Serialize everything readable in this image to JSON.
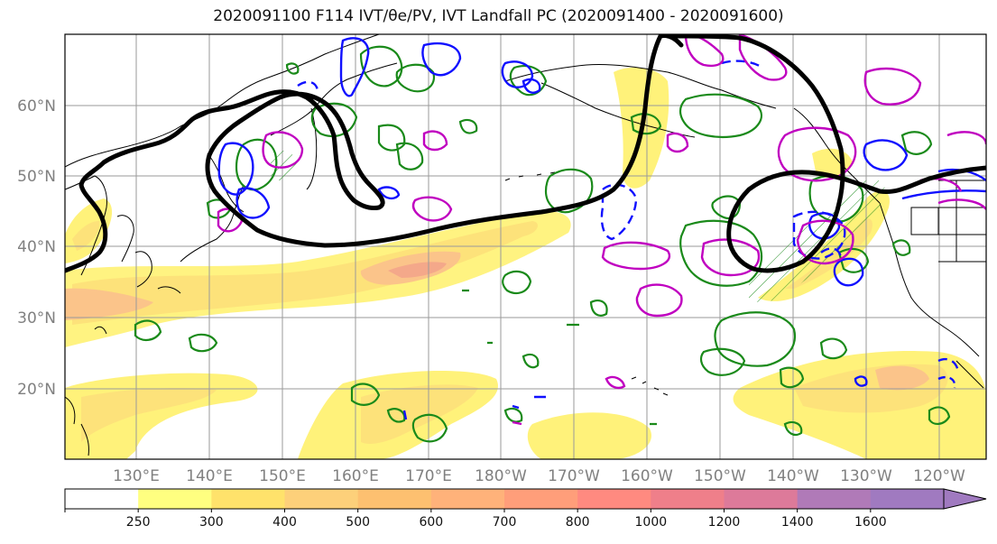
{
  "title": "2020091100 F114 IVT/θe/PV, IVT Landfall PC (2020091400 - 2020091600)",
  "lat_labels": [
    "60°N",
    "50°N",
    "40°N",
    "30°N",
    "20°N"
  ],
  "lon_labels": [
    "130°E",
    "140°E",
    "150°E",
    "160°E",
    "170°E",
    "180°W",
    "170°W",
    "160°W",
    "150°W",
    "140°W",
    "130°W",
    "120°W"
  ],
  "colorbar": {
    "ticks": [
      "250",
      "300",
      "400",
      "500",
      "600",
      "700",
      "800",
      "1000",
      "1200",
      "1400",
      "1600"
    ],
    "colors": [
      "#ffffff",
      "#ffff80",
      "#ffe26b",
      "#fdd07a",
      "#fdc070",
      "#ffb27a",
      "#ff9e7a",
      "#ff8a80",
      "#ef7f8a",
      "#dd7a9a",
      "#b07ab8",
      "#a07ac0"
    ]
  },
  "colors": {
    "jet_contour": "#000000",
    "green_contour": "#1a8a1a",
    "blue_contour": "#1010ff",
    "magenta_contour": "#c000c0",
    "ivt_fill": "#ffff80"
  }
}
